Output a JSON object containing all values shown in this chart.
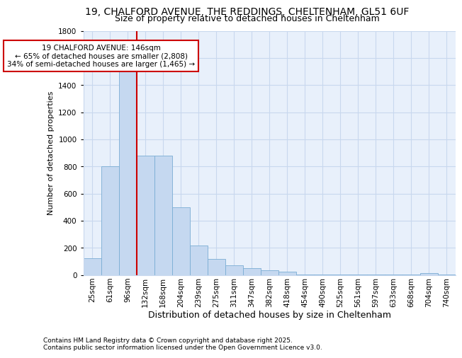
{
  "title1": "19, CHALFORD AVENUE, THE REDDINGS, CHELTENHAM, GL51 6UF",
  "title2": "Size of property relative to detached houses in Cheltenham",
  "xlabel": "Distribution of detached houses by size in Cheltenham",
  "ylabel": "Number of detached properties",
  "categories": [
    "25sqm",
    "61sqm",
    "96sqm",
    "132sqm",
    "168sqm",
    "204sqm",
    "239sqm",
    "275sqm",
    "311sqm",
    "347sqm",
    "382sqm",
    "418sqm",
    "454sqm",
    "490sqm",
    "525sqm",
    "561sqm",
    "597sqm",
    "633sqm",
    "668sqm",
    "704sqm",
    "740sqm"
  ],
  "values": [
    125,
    800,
    1500,
    880,
    880,
    500,
    215,
    115,
    70,
    50,
    35,
    25,
    5,
    5,
    5,
    5,
    5,
    5,
    5,
    15,
    5
  ],
  "bar_color": "#c5d8f0",
  "bar_edge_color": "#7aadd4",
  "grid_color": "#c8d8ee",
  "bg_color": "#e8f0fb",
  "vline_x_index": 2,
  "vline_color": "#cc0000",
  "annotation_line1": "19 CHALFORD AVENUE: 146sqm",
  "annotation_line2": "← 65% of detached houses are smaller (2,808)",
  "annotation_line3": "34% of semi-detached houses are larger (1,465) →",
  "annotation_box_color": "#ffffff",
  "annotation_edge_color": "#cc0000",
  "footer1": "Contains HM Land Registry data © Crown copyright and database right 2025.",
  "footer2": "Contains public sector information licensed under the Open Government Licence v3.0.",
  "ylim": [
    0,
    1800
  ],
  "title1_fontsize": 10,
  "title2_fontsize": 9,
  "xlabel_fontsize": 9,
  "ylabel_fontsize": 8,
  "tick_fontsize": 7.5,
  "annotation_fontsize": 7.5,
  "footer_fontsize": 6.5
}
